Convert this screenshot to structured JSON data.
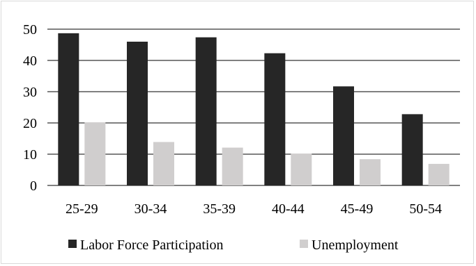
{
  "chart_data": {
    "type": "bar",
    "categories": [
      "25-29",
      "30-34",
      "35-39",
      "40-44",
      "45-49",
      "50-54"
    ],
    "series": [
      {
        "name": "Labor Force Participation",
        "values": [
          48.7,
          46.0,
          47.4,
          42.3,
          31.7,
          22.8
        ],
        "color": "#262626"
      },
      {
        "name": "Unemployment",
        "values": [
          20.2,
          13.9,
          12.1,
          10.2,
          8.4,
          6.9
        ],
        "color": "#d0cece"
      }
    ],
    "y_ticks": [
      "0",
      "10",
      "20",
      "30",
      "40",
      "50"
    ],
    "ylim": [
      0,
      50
    ],
    "grid": true,
    "legend_position": "bottom"
  }
}
